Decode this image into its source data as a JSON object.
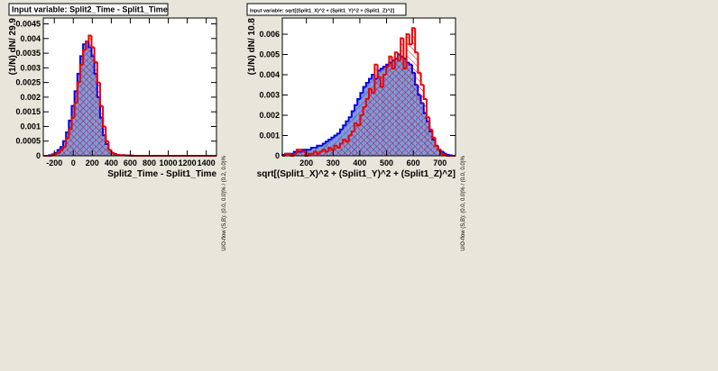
{
  "chart_data": [
    {
      "type": "histogram",
      "title": "Input variable: Split2_Time - Split1_Time",
      "xlabel": "Split2_Time - Split1_Time",
      "ylabel": "(1/N) dN/ 29.9",
      "annotation": "U/O-flow (S,B): (0.0, 0.0)% / (0.2, 0.0)%",
      "bins": [
        -316,
        -286.1,
        -256.2,
        -226.3,
        -196.4,
        -166.5,
        -136.6,
        -106.7,
        -76.8,
        -46.9,
        -17,
        12.9,
        42.8,
        72.7,
        102.6,
        132.5,
        162.4,
        192.3,
        222.2,
        252.1,
        282,
        311.9,
        341.8,
        371.7,
        401.6,
        431.5,
        461.4,
        491.3,
        521.2,
        551.1,
        581,
        610.9,
        640.8,
        670.7,
        700.6,
        730.5,
        760.4,
        790.3,
        820.2,
        850.1,
        880,
        909.9,
        939.8,
        969.7,
        999.6,
        1029.5,
        1059.4,
        1089.3,
        1119.2,
        1149.1,
        1179,
        1208.9,
        1238.8,
        1268.7,
        1298.6,
        1328.5,
        1358.4,
        1388.3,
        1418.2,
        1448.1,
        1478,
        1507.9
      ],
      "series": [
        {
          "color": "#0000ee",
          "values": [
            0,
            0,
            2e-05,
            5e-05,
            0.0001,
            0.0002,
            0.0003,
            0.0005,
            0.0008,
            0.0012,
            0.0017,
            0.0022,
            0.0028,
            0.0034,
            0.0038,
            0.0039,
            0.0037,
            0.0034,
            0.0028,
            0.002,
            0.0013,
            0.0007,
            0.0004,
            0.0002,
            0.0001,
            6e-05,
            3e-05,
            2e-05,
            2e-05,
            1e-05,
            1e-05,
            0,
            0,
            0,
            0,
            0,
            0,
            0,
            0,
            0,
            0,
            0,
            0,
            0,
            0,
            0,
            0,
            0,
            0,
            0,
            0,
            0,
            0,
            0,
            0,
            0,
            0,
            0,
            0,
            0,
            0
          ]
        },
        {
          "color": "#ee0000",
          "values": [
            0,
            0,
            0,
            3e-05,
            6e-05,
            0.0001,
            0.0002,
            0.0003,
            0.0006,
            0.0009,
            0.0013,
            0.0018,
            0.0025,
            0.0031,
            0.0036,
            0.0039,
            0.0041,
            0.0037,
            0.0032,
            0.0025,
            0.0017,
            0.001,
            0.0005,
            0.0002,
            0.0001,
            5e-05,
            3e-05,
            2e-05,
            2e-05,
            1e-05,
            1e-05,
            1e-05,
            0,
            0,
            0,
            0,
            0,
            0,
            0,
            0,
            0,
            0,
            0,
            0,
            0,
            0,
            0,
            0,
            0,
            0,
            0,
            0,
            0,
            0,
            0,
            0,
            0,
            0,
            0,
            0,
            0
          ]
        }
      ],
      "xlim": [
        -316,
        1507.9
      ],
      "xticks": [
        -200,
        0,
        200,
        400,
        600,
        800,
        1000,
        1200,
        1400
      ],
      "ylim": [
        0,
        0.0047
      ],
      "yticks": [
        0,
        0.0005,
        0.001,
        0.0015,
        0.002,
        0.0025,
        0.003,
        0.0035,
        0.004,
        0.0045
      ]
    },
    {
      "type": "histogram",
      "title": "Input variable: sqrt[(Split1_X)^2 + (Split1_Y)^2 + (Split1_Z)^2]",
      "xlabel": "sqrt[(Split1_X)^2 + (Split1_Y)^2 + (Split1_Z)^2]",
      "ylabel": "(1/N) dN/ 10.8",
      "annotation": "U/O-flow (S,B): (0.0, 0.0)% / (0.0, 0.0)%",
      "bins": [
        110,
        120.8,
        131.6,
        142.4,
        153.2,
        164,
        174.8,
        185.6,
        196.4,
        207.2,
        218,
        228.8,
        239.6,
        250.4,
        261.2,
        272,
        282.8,
        293.6,
        304.4,
        315.2,
        326,
        336.8,
        347.6,
        358.4,
        369.2,
        380,
        390.8,
        401.6,
        412.4,
        423.2,
        434,
        444.8,
        455.6,
        466.4,
        477.2,
        488,
        498.8,
        509.6,
        520.4,
        531.2,
        542,
        552.8,
        563.6,
        574.4,
        585.2,
        596,
        606.8,
        617.6,
        628.4,
        639.2,
        650,
        660.8,
        671.6,
        682.4,
        693.2,
        704,
        714.8,
        725.6,
        736.4,
        747.2,
        758
      ],
      "series": [
        {
          "color": "#0000ee",
          "values": [
            5e-05,
            0.0001,
            0.0001,
            0.0001,
            0.0002,
            0.0002,
            0.0002,
            0.0003,
            0.0003,
            0.0003,
            0.0004,
            0.0004,
            0.0005,
            0.0005,
            0.0006,
            0.0007,
            0.0008,
            0.0009,
            0.001,
            0.0011,
            0.0013,
            0.0015,
            0.0017,
            0.0019,
            0.0022,
            0.0025,
            0.0028,
            0.0031,
            0.0034,
            0.0036,
            0.0038,
            0.004,
            0.0038,
            0.0042,
            0.0043,
            0.0044,
            0.0045,
            0.0046,
            0.0047,
            0.0048,
            0.005,
            0.0049,
            0.0048,
            0.0046,
            0.0045,
            0.0041,
            0.0035,
            0.003,
            0.0026,
            0.0021,
            0.0017,
            0.0012,
            0.0008,
            0.0005,
            0.0003,
            0.0002,
            0.0001,
            5e-05,
            2e-05,
            0
          ]
        },
        {
          "color": "#ee0000",
          "values": [
            0,
            0.0001,
            0.0001,
            0,
            0.0001,
            0.0003,
            0.0003,
            0.0002,
            0,
            0.0001,
            0.0001,
            0.0002,
            0.0001,
            0.0002,
            0.0003,
            0.0002,
            0.0004,
            0.0003,
            0.0005,
            0.0004,
            0.0006,
            0.0008,
            0.0007,
            0.001,
            0.0012,
            0.0016,
            0.0015,
            0.002,
            0.0024,
            0.0028,
            0.0033,
            0.0031,
            0.0045,
            0.0039,
            0.0034,
            0.004,
            0.0044,
            0.0049,
            0.0043,
            0.0051,
            0.0047,
            0.0058,
            0.0043,
            0.006,
            0.0055,
            0.0063,
            0.0051,
            0.0041,
            0.0035,
            0.0028,
            0.0019,
            0.0013,
            0.0009,
            0.0005,
            0.0003,
            0.0001,
            5e-05,
            0,
            0,
            0
          ]
        }
      ],
      "xlim": [
        110,
        758
      ],
      "xticks": [
        200,
        300,
        400,
        500,
        600,
        700
      ],
      "ylim": [
        0,
        0.0068
      ],
      "yticks": [
        0,
        0.001,
        0.002,
        0.003,
        0.004,
        0.005,
        0.006
      ]
    }
  ]
}
